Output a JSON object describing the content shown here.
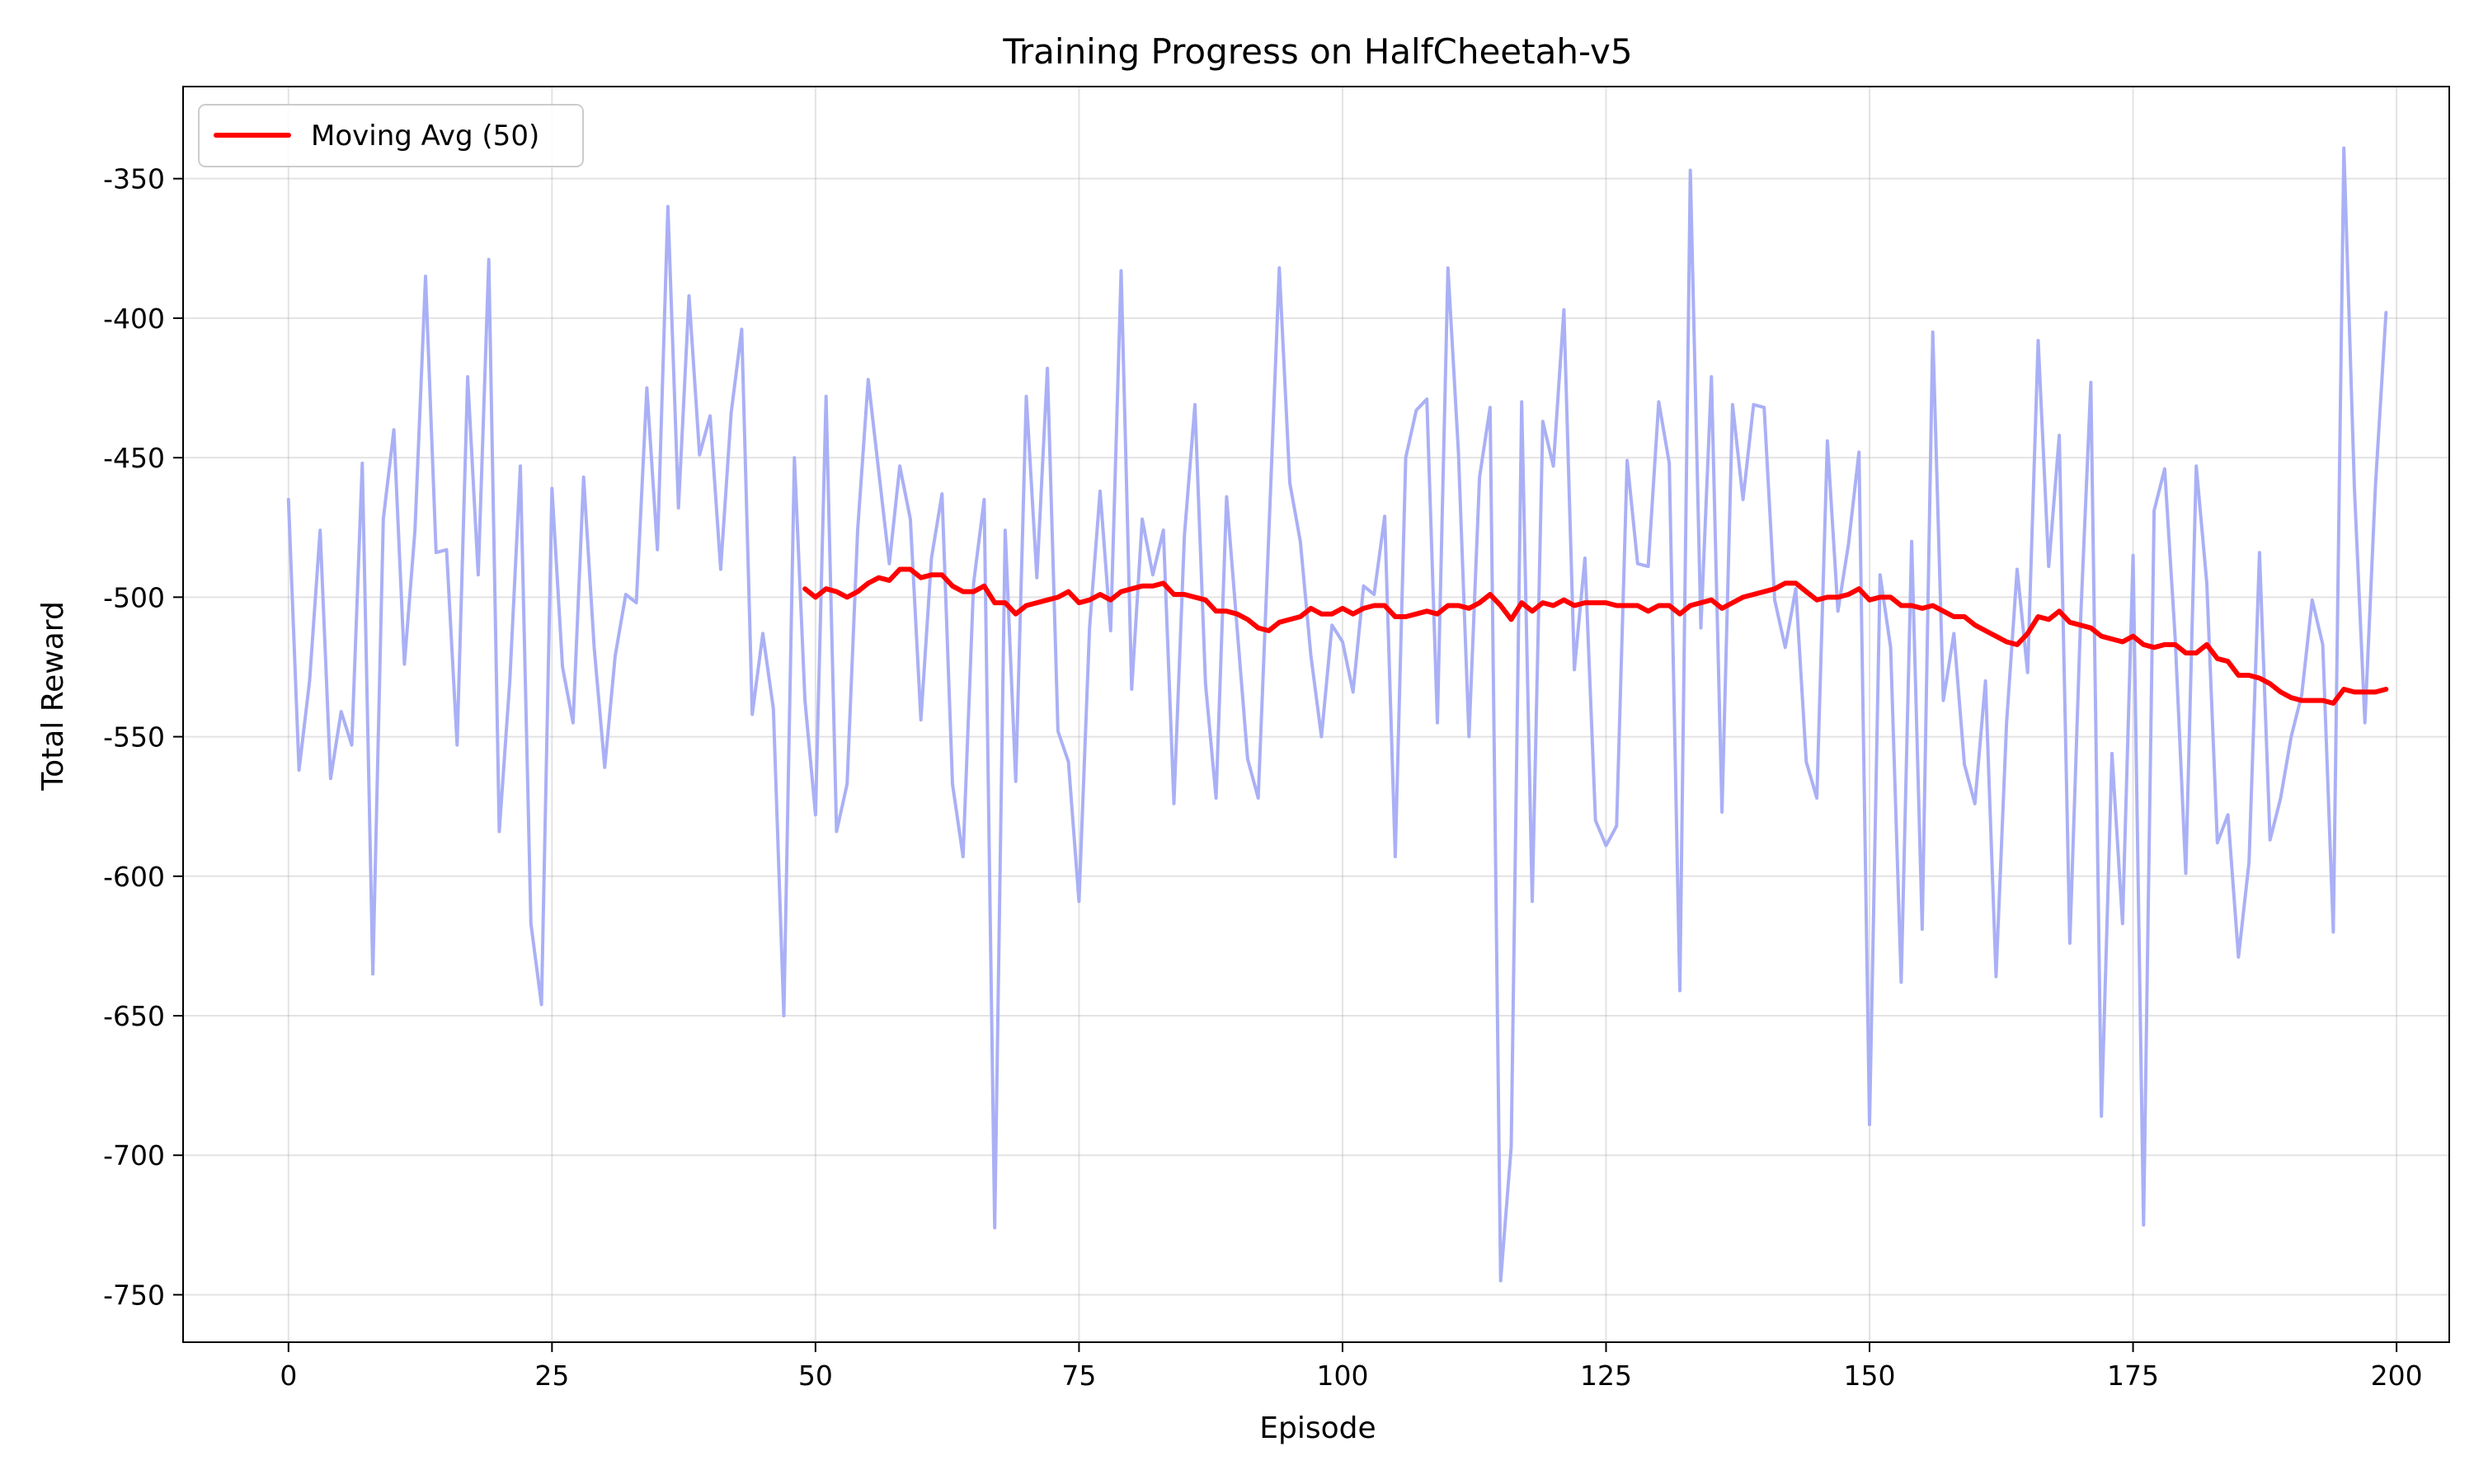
{
  "chart_data": {
    "type": "line",
    "title": "Training Progress on HalfCheetah-v5",
    "xlabel": "Episode",
    "ylabel": "Total Reward",
    "xlim": [
      -10,
      205
    ],
    "ylim": [
      -767,
      -317
    ],
    "xticks": [
      0,
      25,
      50,
      75,
      100,
      125,
      150,
      175,
      200
    ],
    "yticks": [
      -750,
      -700,
      -650,
      -600,
      -550,
      -500,
      -450,
      -400,
      -350
    ],
    "grid": true,
    "legend_position": "top-left",
    "series": [
      {
        "key": "raw",
        "color": "#aab0f5",
        "x_start": 0,
        "values": [
          -465,
          -562,
          -530,
          -476,
          -565,
          -541,
          -553,
          -452,
          -635,
          -472,
          -440,
          -524,
          -476,
          -385,
          -484,
          -483,
          -553,
          -421,
          -492,
          -379,
          -584,
          -530,
          -453,
          -617,
          -646,
          -461,
          -525,
          -545,
          -457,
          -518,
          -561,
          -521,
          -499,
          -502,
          -425,
          -483,
          -360,
          -468,
          -392,
          -449,
          -435,
          -490,
          -434,
          -404,
          -542,
          -513,
          -540,
          -650,
          -450,
          -537,
          -578,
          -428,
          -584,
          -567,
          -476,
          -422,
          -455,
          -488,
          -453,
          -472,
          -544,
          -486,
          -463,
          -567,
          -593,
          -495,
          -465,
          -726,
          -476,
          -566,
          -428,
          -493,
          -418,
          -548,
          -559,
          -609,
          -511,
          -462,
          -512,
          -383,
          -533,
          -472,
          -492,
          -476,
          -574,
          -478,
          -431,
          -531,
          -572,
          -464,
          -511,
          -558,
          -572,
          -478,
          -382,
          -459,
          -480,
          -521,
          -550,
          -510,
          -516,
          -534,
          -496,
          -499,
          -471,
          -593,
          -450,
          -433,
          -429,
          -545,
          -382,
          -448,
          -550,
          -457,
          -432,
          -745,
          -697,
          -430,
          -609,
          -437,
          -453,
          -397,
          -526,
          -486,
          -580,
          -589,
          -582,
          -451,
          -488,
          -489,
          -430,
          -452,
          -641,
          -347,
          -511,
          -421,
          -577,
          -431,
          -465,
          -431,
          -432,
          -501,
          -518,
          -497,
          -559,
          -572,
          -444,
          -505,
          -481,
          -448,
          -689,
          -492,
          -518,
          -638,
          -480,
          -619,
          -405,
          -537,
          -513,
          -560,
          -574,
          -530,
          -636,
          -545,
          -490,
          -527,
          -408,
          -489,
          -442,
          -624,
          -510,
          -423,
          -686,
          -556,
          -617,
          -485,
          -725,
          -469,
          -454,
          -515,
          -599,
          -453,
          -495,
          -588,
          -578,
          -629,
          -595,
          -484,
          -587,
          -572,
          -550,
          -535,
          -501,
          -517,
          -620,
          -339,
          -461,
          -545,
          -460,
          -398
        ]
      },
      {
        "key": "avg",
        "name": "Moving Avg (50)",
        "color": "#ff0000",
        "x_start": 49,
        "values": [
          -497,
          -500,
          -497,
          -498,
          -500,
          -498,
          -495,
          -493,
          -494,
          -490,
          -490,
          -493,
          -492,
          -492,
          -496,
          -498,
          -498,
          -496,
          -502,
          -502,
          -506,
          -503,
          -502,
          -501,
          -500,
          -498,
          -502,
          -501,
          -499,
          -501,
          -498,
          -497,
          -496,
          -496,
          -495,
          -499,
          -499,
          -500,
          -501,
          -505,
          -505,
          -506,
          -508,
          -511,
          -512,
          -509,
          -508,
          -507,
          -504,
          -506,
          -506,
          -504,
          -506,
          -504,
          -503,
          -503,
          -507,
          -507,
          -506,
          -505,
          -506,
          -503,
          -503,
          -504,
          -502,
          -499,
          -503,
          -508,
          -502,
          -505,
          -502,
          -503,
          -501,
          -503,
          -502,
          -502,
          -502,
          -503,
          -503,
          -503,
          -505,
          -503,
          -503,
          -506,
          -503,
          -502,
          -501,
          -504,
          -502,
          -500,
          -499,
          -498,
          -497,
          -495,
          -495,
          -498,
          -501,
          -500,
          -500,
          -499,
          -497,
          -501,
          -500,
          -500,
          -503,
          -503,
          -504,
          -503,
          -505,
          -507,
          -507,
          -510,
          -512,
          -514,
          -516,
          -517,
          -513,
          -507,
          -508,
          -505,
          -509,
          -510,
          -511,
          -514,
          -515,
          -516,
          -514,
          -517,
          -518,
          -517,
          -517,
          -520,
          -520,
          -517,
          -522,
          -523,
          -528,
          -528,
          -529,
          -531,
          -534,
          -536,
          -537,
          -537,
          -537,
          -538,
          -533,
          -534,
          -534,
          -534,
          -533
        ]
      }
    ]
  }
}
